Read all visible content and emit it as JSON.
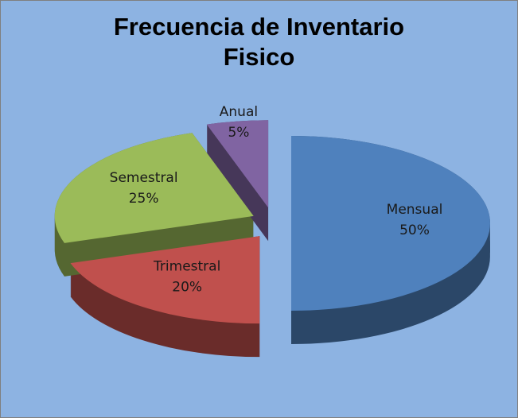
{
  "chart_data": {
    "type": "pie",
    "title": "Frecuencia de Inventario Fisico",
    "categories": [
      "Mensual",
      "Trimestral",
      "Semestral",
      "Anual"
    ],
    "values": [
      50,
      20,
      25,
      5
    ],
    "value_labels": [
      "50%",
      "20%",
      "25%",
      "5%"
    ],
    "colors": [
      "#4f81bd",
      "#c0504d",
      "#9bbb59",
      "#8064a2"
    ]
  }
}
